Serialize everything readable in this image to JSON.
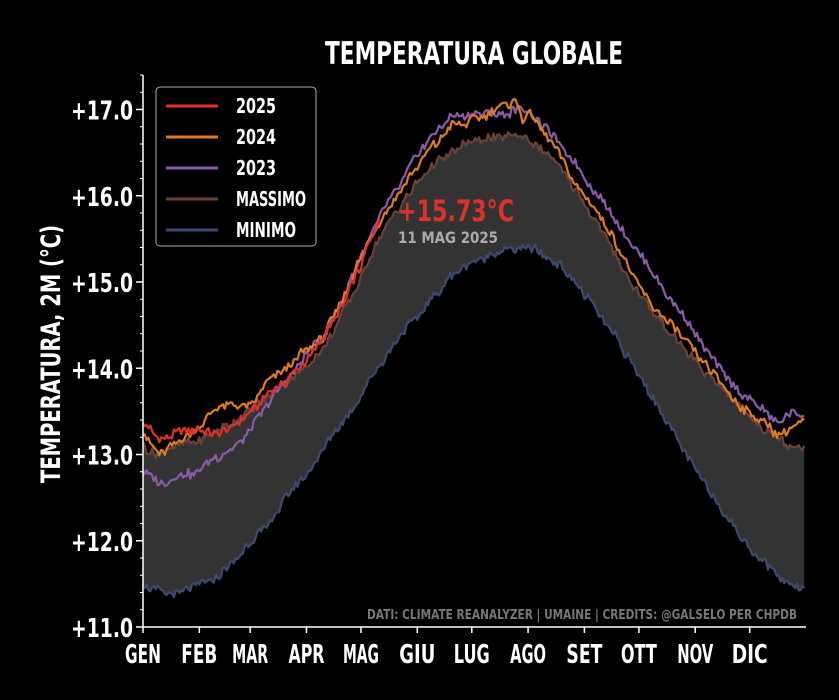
{
  "chart_data": {
    "type": "line",
    "title": "TEMPERATURA GLOBALE",
    "ylabel": "TEMPERATURA, 2M (°C)",
    "xlabel": "",
    "ylim": [
      11.0,
      17.4
    ],
    "yticks": [
      "+11.0",
      "+12.0",
      "+13.0",
      "+14.0",
      "+15.0",
      "+16.0",
      "+17.0"
    ],
    "ytick_values": [
      11,
      12,
      13,
      14,
      15,
      16,
      17
    ],
    "months": [
      "GEN",
      "FEB",
      "MAR",
      "APR",
      "MAG",
      "GIU",
      "LUG",
      "AGO",
      "SET",
      "OTT",
      "NOV",
      "DIC"
    ],
    "grid": false,
    "legend_position": "top-left",
    "annotation": {
      "value_label": "+15.73°C",
      "date_label": "11 MAG 2025",
      "day": 131,
      "value": 15.73
    },
    "source_text": "DATI: CLIMATE REANALYZER | UMAINE | CREDITS: @GALSELO PER CHPDB",
    "series": [
      {
        "name": "2025",
        "color": "#e0302b",
        "points": [
          [
            1,
            13.35
          ],
          [
            10,
            13.2
          ],
          [
            20,
            13.25
          ],
          [
            31,
            13.3
          ],
          [
            40,
            13.25
          ],
          [
            50,
            13.3
          ],
          [
            59,
            13.45
          ],
          [
            70,
            13.7
          ],
          [
            80,
            13.85
          ],
          [
            90,
            14.05
          ],
          [
            100,
            14.35
          ],
          [
            110,
            14.7
          ],
          [
            120,
            15.15
          ],
          [
            131,
            15.73
          ]
        ]
      },
      {
        "name": "2024",
        "color": "#e07a22",
        "points": [
          [
            1,
            13.25
          ],
          [
            10,
            13.0
          ],
          [
            20,
            13.15
          ],
          [
            31,
            13.3
          ],
          [
            40,
            13.5
          ],
          [
            50,
            13.6
          ],
          [
            59,
            13.55
          ],
          [
            70,
            13.85
          ],
          [
            80,
            14.0
          ],
          [
            90,
            14.2
          ],
          [
            100,
            14.35
          ],
          [
            110,
            14.75
          ],
          [
            120,
            15.25
          ],
          [
            130,
            15.65
          ],
          [
            140,
            15.95
          ],
          [
            150,
            16.3
          ],
          [
            160,
            16.55
          ],
          [
            170,
            16.8
          ],
          [
            180,
            16.85
          ],
          [
            190,
            16.95
          ],
          [
            200,
            17.05
          ],
          [
            205,
            17.1
          ],
          [
            210,
            16.9
          ],
          [
            215,
            17.0
          ],
          [
            220,
            16.75
          ],
          [
            230,
            16.5
          ],
          [
            240,
            16.1
          ],
          [
            250,
            15.85
          ],
          [
            260,
            15.5
          ],
          [
            270,
            15.1
          ],
          [
            280,
            14.75
          ],
          [
            290,
            14.55
          ],
          [
            300,
            14.3
          ],
          [
            310,
            14.05
          ],
          [
            320,
            13.8
          ],
          [
            330,
            13.55
          ],
          [
            340,
            13.4
          ],
          [
            350,
            13.25
          ],
          [
            358,
            13.3
          ],
          [
            365,
            13.4
          ]
        ]
      },
      {
        "name": "2023",
        "color": "#8a5aa8",
        "points": [
          [
            1,
            12.8
          ],
          [
            10,
            12.65
          ],
          [
            20,
            12.75
          ],
          [
            31,
            12.8
          ],
          [
            40,
            12.95
          ],
          [
            50,
            13.05
          ],
          [
            59,
            13.25
          ],
          [
            70,
            13.6
          ],
          [
            80,
            13.85
          ],
          [
            90,
            14.15
          ],
          [
            100,
            14.35
          ],
          [
            110,
            14.75
          ],
          [
            120,
            15.25
          ],
          [
            130,
            15.7
          ],
          [
            140,
            16.05
          ],
          [
            150,
            16.4
          ],
          [
            160,
            16.7
          ],
          [
            170,
            16.9
          ],
          [
            180,
            16.95
          ],
          [
            190,
            16.95
          ],
          [
            200,
            16.95
          ],
          [
            210,
            17.0
          ],
          [
            220,
            16.85
          ],
          [
            230,
            16.6
          ],
          [
            240,
            16.35
          ],
          [
            250,
            16.05
          ],
          [
            260,
            15.75
          ],
          [
            270,
            15.45
          ],
          [
            280,
            15.15
          ],
          [
            290,
            14.85
          ],
          [
            300,
            14.6
          ],
          [
            310,
            14.25
          ],
          [
            320,
            13.95
          ],
          [
            330,
            13.7
          ],
          [
            340,
            13.55
          ],
          [
            350,
            13.35
          ],
          [
            358,
            13.5
          ],
          [
            365,
            13.45
          ]
        ]
      },
      {
        "name": "MASSIMO",
        "color": "#6b4336",
        "points": [
          [
            1,
            13.1
          ],
          [
            10,
            13.0
          ],
          [
            20,
            13.1
          ],
          [
            31,
            13.15
          ],
          [
            40,
            13.25
          ],
          [
            50,
            13.35
          ],
          [
            59,
            13.5
          ],
          [
            70,
            13.7
          ],
          [
            80,
            13.85
          ],
          [
            90,
            14.0
          ],
          [
            100,
            14.2
          ],
          [
            110,
            14.6
          ],
          [
            120,
            15.0
          ],
          [
            130,
            15.45
          ],
          [
            140,
            15.8
          ],
          [
            150,
            16.1
          ],
          [
            160,
            16.35
          ],
          [
            170,
            16.5
          ],
          [
            180,
            16.6
          ],
          [
            190,
            16.65
          ],
          [
            200,
            16.7
          ],
          [
            210,
            16.7
          ],
          [
            220,
            16.55
          ],
          [
            230,
            16.35
          ],
          [
            240,
            16.05
          ],
          [
            250,
            15.7
          ],
          [
            260,
            15.35
          ],
          [
            270,
            15.0
          ],
          [
            280,
            14.7
          ],
          [
            290,
            14.45
          ],
          [
            300,
            14.2
          ],
          [
            310,
            13.95
          ],
          [
            320,
            13.75
          ],
          [
            330,
            13.55
          ],
          [
            340,
            13.35
          ],
          [
            350,
            13.2
          ],
          [
            358,
            13.1
          ],
          [
            365,
            13.1
          ]
        ]
      },
      {
        "name": "MINIMO",
        "color": "#3d4a6e",
        "points": [
          [
            1,
            11.5
          ],
          [
            10,
            11.4
          ],
          [
            20,
            11.4
          ],
          [
            31,
            11.5
          ],
          [
            40,
            11.55
          ],
          [
            50,
            11.75
          ],
          [
            59,
            11.95
          ],
          [
            70,
            12.2
          ],
          [
            80,
            12.5
          ],
          [
            90,
            12.75
          ],
          [
            100,
            13.05
          ],
          [
            110,
            13.35
          ],
          [
            120,
            13.65
          ],
          [
            130,
            14.0
          ],
          [
            140,
            14.3
          ],
          [
            150,
            14.55
          ],
          [
            160,
            14.8
          ],
          [
            170,
            15.05
          ],
          [
            180,
            15.2
          ],
          [
            190,
            15.3
          ],
          [
            200,
            15.35
          ],
          [
            210,
            15.4
          ],
          [
            220,
            15.35
          ],
          [
            230,
            15.2
          ],
          [
            240,
            14.95
          ],
          [
            250,
            14.7
          ],
          [
            260,
            14.4
          ],
          [
            270,
            14.05
          ],
          [
            280,
            13.7
          ],
          [
            290,
            13.35
          ],
          [
            300,
            13.0
          ],
          [
            310,
            12.7
          ],
          [
            320,
            12.35
          ],
          [
            330,
            12.05
          ],
          [
            340,
            11.8
          ],
          [
            350,
            11.6
          ],
          [
            358,
            11.5
          ],
          [
            365,
            11.45
          ]
        ]
      }
    ]
  }
}
